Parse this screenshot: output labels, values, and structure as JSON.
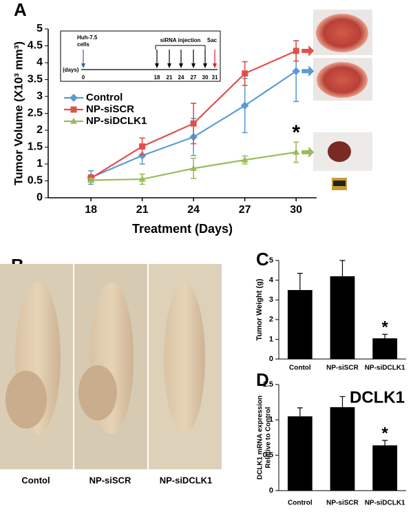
{
  "chart_data": [
    {
      "type": "line",
      "xlabel": "Treatment (Days)",
      "ylabel": "Tumor Volume (X10³ mm³)",
      "x": [
        18,
        21,
        24,
        27,
        30
      ],
      "xlim": [
        15.5,
        31.2
      ],
      "xticks": [
        18,
        21,
        24,
        27,
        30
      ],
      "ylim": [
        0,
        5
      ],
      "yticks": [
        0,
        0.5,
        1,
        1.5,
        2,
        2.5,
        3,
        3.5,
        4,
        4.5,
        5
      ],
      "annotation": "*",
      "series": [
        {
          "name": "Control",
          "color": "#5b9bd5",
          "marker": "diamond",
          "values": [
            0.6,
            1.25,
            1.8,
            2.73,
            3.75
          ],
          "errors": [
            0.2,
            0.25,
            0.55,
            0.8,
            0.9
          ]
        },
        {
          "name": "NP-siSCR",
          "color": "#e0504a",
          "marker": "square",
          "values": [
            0.58,
            1.52,
            2.2,
            3.68,
            4.35
          ],
          "errors": [
            0.1,
            0.25,
            0.6,
            0.35,
            0.3
          ]
        },
        {
          "name": "NP-siDCLK1",
          "color": "#9bbb59",
          "marker": "triangle",
          "values": [
            0.52,
            0.55,
            0.87,
            1.12,
            1.35
          ],
          "errors": [
            0.05,
            0.15,
            0.3,
            0.12,
            0.3
          ]
        }
      ]
    },
    {
      "type": "bar",
      "ylabel": "Tumor Weight (g)",
      "categories": [
        "Contol",
        "NP-siSCR",
        "NP-siDCLK1"
      ],
      "values": [
        3.5,
        4.2,
        1.05
      ],
      "errors": [
        0.85,
        0.8,
        0.2
      ],
      "color": "#000000",
      "ylim": [
        0,
        5
      ],
      "yticks": [
        0,
        1,
        2,
        3,
        4,
        5
      ],
      "annotation": "*"
    },
    {
      "type": "bar",
      "title": "DCLK1",
      "ylabel": [
        "DCLK1 mRNA expression",
        "Relative to Control"
      ],
      "categories": [
        "Control",
        "NP-siSCR",
        "NP-siDCLK1"
      ],
      "values": [
        1.05,
        1.18,
        0.64
      ],
      "errors": [
        0.12,
        0.15,
        0.07
      ],
      "color": "#000000",
      "ylim": [
        0,
        1.5
      ],
      "yticks": [
        0,
        0.5,
        1,
        1.5
      ],
      "annotation": "*"
    }
  ],
  "panel_labels": [
    "A",
    "B",
    "C",
    "D"
  ],
  "photo_labels": [
    "Contol",
    "NP-siSCR",
    "NP-siDCLK1"
  ],
  "timeline": {
    "start_label": [
      "Huh-7.5",
      "cells"
    ],
    "injection_label": "siRNA injection",
    "sac_label": "Sac",
    "unit_label": "(days)",
    "days": [
      0,
      18,
      21,
      24,
      27,
      30,
      31
    ]
  }
}
